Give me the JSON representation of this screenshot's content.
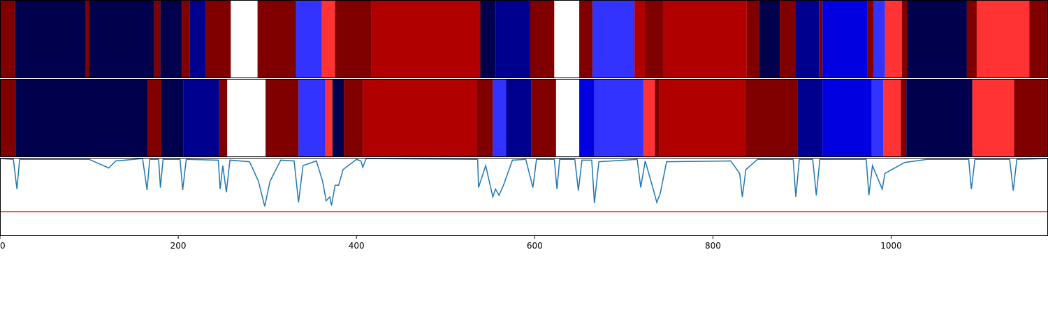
{
  "chart_data": {
    "type": "segmentation",
    "xlim": [
      0,
      1176
    ],
    "xticks": [
      0,
      200,
      400,
      600,
      800,
      1000
    ],
    "bars": [
      {
        "segments": [
          {
            "start": 0,
            "end": 17,
            "color": "#800000"
          },
          {
            "start": 17,
            "end": 96,
            "color": "#00004c"
          },
          {
            "start": 96,
            "end": 100,
            "color": "#800000"
          },
          {
            "start": 100,
            "end": 173,
            "color": "#00004c"
          },
          {
            "start": 173,
            "end": 180,
            "color": "#800000"
          },
          {
            "start": 180,
            "end": 204,
            "color": "#00004c"
          },
          {
            "start": 204,
            "end": 213,
            "color": "#800000"
          },
          {
            "start": 213,
            "end": 231,
            "color": "#00008f"
          },
          {
            "start": 231,
            "end": 259,
            "color": "#800000"
          },
          {
            "start": 259,
            "end": 289,
            "color": "#ffffff"
          },
          {
            "start": 289,
            "end": 332,
            "color": "#800000"
          },
          {
            "start": 332,
            "end": 361,
            "color": "#3333ff"
          },
          {
            "start": 361,
            "end": 376,
            "color": "#ff3333"
          },
          {
            "start": 376,
            "end": 417,
            "color": "#800000"
          },
          {
            "start": 417,
            "end": 539,
            "color": "#b00000"
          },
          {
            "start": 539,
            "end": 556,
            "color": "#00004c"
          },
          {
            "start": 556,
            "end": 595,
            "color": "#00008f"
          },
          {
            "start": 595,
            "end": 622,
            "color": "#800000"
          },
          {
            "start": 622,
            "end": 650,
            "color": "#ffffff"
          },
          {
            "start": 650,
            "end": 665,
            "color": "#800000"
          },
          {
            "start": 665,
            "end": 712,
            "color": "#3333ff"
          },
          {
            "start": 712,
            "end": 724,
            "color": "#b00000"
          },
          {
            "start": 724,
            "end": 744,
            "color": "#800000"
          },
          {
            "start": 744,
            "end": 838,
            "color": "#b00000"
          },
          {
            "start": 838,
            "end": 852,
            "color": "#800000"
          },
          {
            "start": 852,
            "end": 875,
            "color": "#00004c"
          },
          {
            "start": 875,
            "end": 893,
            "color": "#800000"
          },
          {
            "start": 893,
            "end": 919,
            "color": "#00008f"
          },
          {
            "start": 919,
            "end": 923,
            "color": "#800000"
          },
          {
            "start": 923,
            "end": 973,
            "color": "#0000e0"
          },
          {
            "start": 973,
            "end": 980,
            "color": "#800000"
          },
          {
            "start": 980,
            "end": 993,
            "color": "#3333ff"
          },
          {
            "start": 993,
            "end": 1012,
            "color": "#ff3333"
          },
          {
            "start": 1012,
            "end": 1018,
            "color": "#800000"
          },
          {
            "start": 1018,
            "end": 1085,
            "color": "#00004c"
          },
          {
            "start": 1085,
            "end": 1096,
            "color": "#800000"
          },
          {
            "start": 1096,
            "end": 1155,
            "color": "#ff3333"
          },
          {
            "start": 1155,
            "end": 1176,
            "color": "#800000"
          }
        ]
      },
      {
        "segments": [
          {
            "start": 0,
            "end": 18,
            "color": "#800000"
          },
          {
            "start": 18,
            "end": 166,
            "color": "#00004c"
          },
          {
            "start": 166,
            "end": 181,
            "color": "#800000"
          },
          {
            "start": 181,
            "end": 206,
            "color": "#00004c"
          },
          {
            "start": 206,
            "end": 246,
            "color": "#00008f"
          },
          {
            "start": 246,
            "end": 255,
            "color": "#800000"
          },
          {
            "start": 255,
            "end": 298,
            "color": "#ffffff"
          },
          {
            "start": 298,
            "end": 335,
            "color": "#800000"
          },
          {
            "start": 335,
            "end": 365,
            "color": "#3333ff"
          },
          {
            "start": 365,
            "end": 373,
            "color": "#ff3333"
          },
          {
            "start": 373,
            "end": 386,
            "color": "#00004c"
          },
          {
            "start": 386,
            "end": 407,
            "color": "#800000"
          },
          {
            "start": 407,
            "end": 535,
            "color": "#b00000"
          },
          {
            "start": 535,
            "end": 553,
            "color": "#800000"
          },
          {
            "start": 553,
            "end": 568,
            "color": "#3333ff"
          },
          {
            "start": 568,
            "end": 596,
            "color": "#00008f"
          },
          {
            "start": 596,
            "end": 624,
            "color": "#800000"
          },
          {
            "start": 624,
            "end": 650,
            "color": "#ffffff"
          },
          {
            "start": 650,
            "end": 667,
            "color": "#0000e0"
          },
          {
            "start": 667,
            "end": 722,
            "color": "#3333ff"
          },
          {
            "start": 722,
            "end": 735,
            "color": "#ff3333"
          },
          {
            "start": 735,
            "end": 740,
            "color": "#800000"
          },
          {
            "start": 740,
            "end": 836,
            "color": "#b00000"
          },
          {
            "start": 836,
            "end": 895,
            "color": "#800000"
          },
          {
            "start": 895,
            "end": 923,
            "color": "#00008f"
          },
          {
            "start": 923,
            "end": 978,
            "color": "#0000e0"
          },
          {
            "start": 978,
            "end": 991,
            "color": "#3333ff"
          },
          {
            "start": 991,
            "end": 1011,
            "color": "#ff3333"
          },
          {
            "start": 1011,
            "end": 1017,
            "color": "#800000"
          },
          {
            "start": 1017,
            "end": 1091,
            "color": "#00004c"
          },
          {
            "start": 1091,
            "end": 1138,
            "color": "#ff3333"
          },
          {
            "start": 1138,
            "end": 1176,
            "color": "#800000"
          }
        ]
      }
    ],
    "line": {
      "color": "#1f77b4",
      "ylim": [
        0,
        1
      ],
      "x": [
        0,
        15,
        19,
        22,
        100,
        122,
        130,
        160,
        165,
        168,
        178,
        180,
        183,
        202,
        205,
        209,
        245,
        247,
        250,
        254,
        258,
        280,
        290,
        297,
        303,
        315,
        330,
        335,
        340,
        355,
        362,
        366,
        370,
        372,
        376,
        380,
        385,
        400,
        405,
        407,
        411,
        536,
        537,
        545,
        553,
        556,
        560,
        565,
        575,
        590,
        598,
        602,
        622,
        625,
        628,
        645,
        649,
        653,
        664,
        667,
        672,
        715,
        719,
        724,
        733,
        737,
        741,
        748,
        820,
        830,
        833,
        837,
        850,
        890,
        893,
        897,
        912,
        916,
        920,
        972,
        975,
        979,
        990,
        993,
        1015,
        1040,
        1087,
        1090,
        1094,
        1133,
        1137,
        1141,
        1176
      ],
      "values": [
        0.99,
        0.98,
        0.6,
        0.98,
        0.98,
        0.87,
        0.96,
        0.99,
        0.59,
        0.98,
        0.98,
        0.62,
        0.98,
        0.98,
        0.59,
        0.98,
        0.97,
        0.6,
        0.9,
        0.56,
        0.97,
        0.95,
        0.7,
        0.38,
        0.7,
        0.97,
        0.96,
        0.43,
        0.9,
        0.96,
        0.7,
        0.45,
        0.5,
        0.39,
        0.65,
        0.65,
        0.85,
        0.98,
        0.96,
        0.88,
        0.99,
        0.98,
        0.62,
        0.9,
        0.5,
        0.6,
        0.52,
        0.65,
        0.97,
        0.98,
        0.62,
        0.98,
        0.98,
        0.6,
        0.98,
        0.98,
        0.58,
        0.97,
        0.97,
        0.42,
        0.95,
        0.98,
        0.62,
        0.96,
        0.6,
        0.43,
        0.55,
        0.95,
        0.96,
        0.8,
        0.5,
        0.85,
        0.98,
        0.98,
        0.5,
        0.98,
        0.98,
        0.52,
        0.98,
        0.98,
        0.52,
        0.9,
        0.6,
        0.8,
        0.94,
        0.98,
        0.98,
        0.6,
        0.98,
        0.98,
        0.58,
        0.98,
        0.99
      ],
      "hline": 0.31,
      "hline_color": "#ff0000"
    }
  }
}
